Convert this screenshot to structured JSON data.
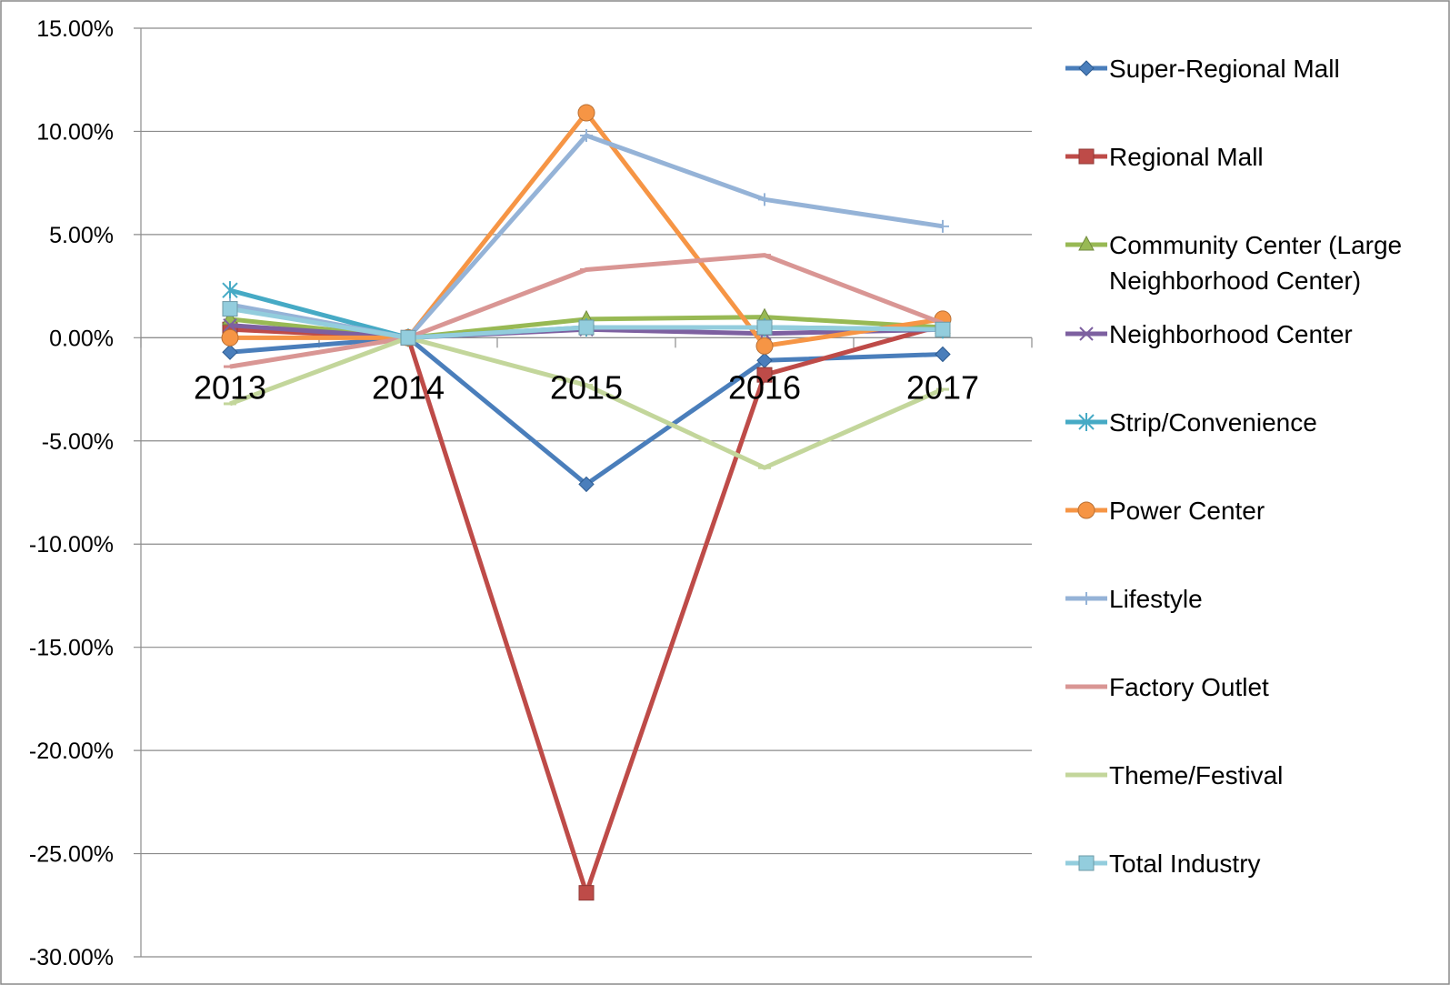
{
  "chart_data": {
    "type": "line",
    "title": "",
    "xlabel": "",
    "ylabel": "",
    "categories": [
      "2013",
      "2014",
      "2015",
      "2016",
      "2017"
    ],
    "ylim": [
      -0.3,
      0.15
    ],
    "ytick_values": [
      0.15,
      0.1,
      0.05,
      0.0,
      -0.05,
      -0.1,
      -0.15,
      -0.2,
      -0.25,
      -0.3
    ],
    "ytick_labels": [
      "15.00%",
      "10.00%",
      "5.00%",
      "0.00%",
      "-5.00%",
      "-10.00%",
      "-15.00%",
      "-20.00%",
      "-25.00%",
      "-30.00%"
    ],
    "grid": true,
    "legend_position": "right",
    "series": [
      {
        "name": "Super-Regional Mall",
        "color": "#4A7EBB",
        "marker": "diamond",
        "values": [
          -0.007,
          0.0,
          -0.071,
          -0.011,
          -0.008
        ]
      },
      {
        "name": "Regional Mall",
        "color": "#BE4B48",
        "marker": "square",
        "values": [
          0.004,
          0.0,
          -0.269,
          -0.018,
          0.006
        ]
      },
      {
        "name": "Community Center (Large Neighborhood Center)",
        "color": "#98B954",
        "marker": "triangle",
        "values": [
          0.009,
          0.0,
          0.009,
          0.01,
          0.005
        ]
      },
      {
        "name": "Neighborhood Center",
        "color": "#7D60A0",
        "marker": "x",
        "values": [
          0.006,
          0.0,
          0.004,
          0.002,
          0.004
        ]
      },
      {
        "name": "Strip/Convenience",
        "color": "#46AAC5",
        "marker": "star",
        "values": [
          0.023,
          0.0,
          0.005,
          0.005,
          0.004
        ]
      },
      {
        "name": "Power Center",
        "color": "#F69545",
        "marker": "circle",
        "values": [
          0.0,
          0.0,
          0.109,
          -0.004,
          0.009
        ]
      },
      {
        "name": "Lifestyle",
        "color": "#95B3D7",
        "marker": "plus",
        "values": [
          0.016,
          0.0,
          0.098,
          0.067,
          0.054
        ]
      },
      {
        "name": "Factory Outlet",
        "color": "#D99694",
        "marker": "dash",
        "values": [
          -0.014,
          0.0,
          0.033,
          0.04,
          0.007
        ]
      },
      {
        "name": "Theme/Festival",
        "color": "#C3D69B",
        "marker": "dash",
        "values": [
          -0.032,
          0.0,
          -0.023,
          -0.063,
          -0.025
        ]
      },
      {
        "name": "Total Industry",
        "color": "#93CDDD",
        "marker": "square",
        "values": [
          0.014,
          0.0,
          0.005,
          0.005,
          0.004
        ]
      }
    ]
  }
}
